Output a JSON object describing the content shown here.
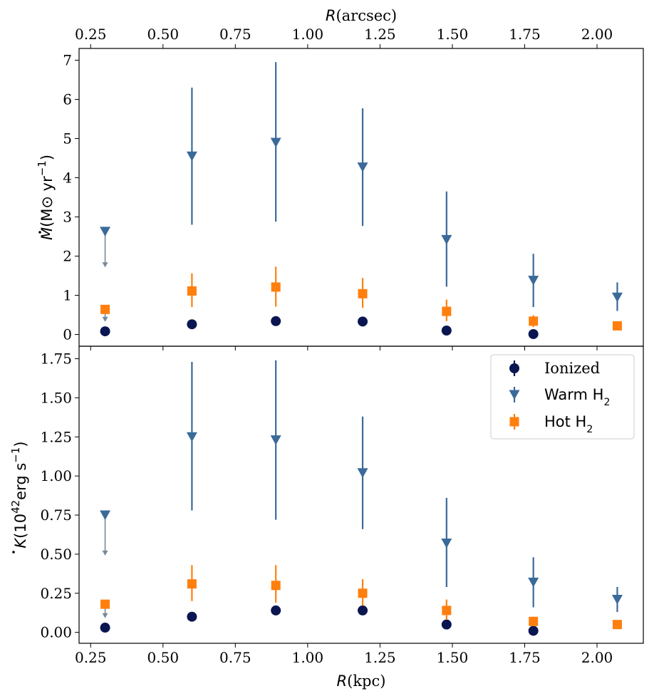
{
  "chart_data": {
    "type": "scatter",
    "top_xaxis": {
      "label_symbol": "R",
      "label_unit": "(arcsec)",
      "ticks": [
        "0.25",
        "0.50",
        "0.75",
        "1.00",
        "1.25",
        "1.50",
        "1.75",
        "2.00"
      ],
      "tick_values": [
        0.25,
        0.5,
        0.75,
        1.0,
        1.25,
        1.5,
        1.75,
        2.0
      ]
    },
    "xaxis": {
      "label_symbol": "R",
      "label_unit": "(kpc)",
      "ticks": [
        "0.25",
        "0.50",
        "0.75",
        "1.00",
        "1.25",
        "1.50",
        "1.75",
        "2.00"
      ],
      "tick_values": [
        0.25,
        0.5,
        0.75,
        1.0,
        1.25,
        1.5,
        1.75,
        2.0
      ],
      "xlim": [
        0.21,
        2.16
      ]
    },
    "legend": {
      "placement": "top-right",
      "entries": [
        {
          "key": "ionized",
          "label": "Ionized",
          "marker": "circle",
          "color": "#0a1650"
        },
        {
          "key": "warm",
          "label_prefix": "Warm H",
          "label_sub": "2",
          "marker": "triangle-down",
          "color": "#3a6a9a"
        },
        {
          "key": "hot",
          "label_prefix": "Hot H",
          "label_sub": "2",
          "marker": "square",
          "color": "#ff7f0e"
        }
      ]
    },
    "upper_limit_color": "#778899",
    "panels": [
      {
        "id": "mdot",
        "ylabel_main": "M",
        "ylabel_unit": "(M⊙ yr",
        "ylabel_exp": "−1",
        "ylabel_close": ")",
        "ylim": [
          -0.3,
          7.3
        ],
        "yticks": [
          0,
          1,
          2,
          3,
          4,
          5,
          6,
          7
        ],
        "ytick_labels": [
          "0",
          "1",
          "2",
          "3",
          "4",
          "5",
          "6",
          "7"
        ],
        "series": [
          {
            "name": "Ionized",
            "x": [
              0.3,
              0.6,
              0.89,
              1.19,
              1.48,
              1.78
            ],
            "y": [
              0.08,
              0.26,
              0.34,
              0.33,
              0.1,
              0.01
            ],
            "err_lo": [
              0.02,
              0.02,
              0.03,
              0.03,
              0.02,
              0.02
            ],
            "err_hi": [
              0.02,
              0.02,
              0.03,
              0.03,
              0.02,
              0.02
            ]
          },
          {
            "name": "Warm H2",
            "x": [
              0.6,
              0.89,
              1.19,
              1.48,
              1.78,
              2.07
            ],
            "y": [
              4.55,
              4.9,
              4.27,
              2.42,
              1.38,
              0.95
            ],
            "err_lo": [
              1.75,
              2.02,
              1.5,
              1.2,
              0.68,
              0.35
            ],
            "err_hi": [
              1.75,
              2.05,
              1.5,
              1.23,
              0.68,
              0.38
            ]
          },
          {
            "name": "Hot H2",
            "x": [
              0.6,
              0.89,
              1.19,
              1.48,
              1.78,
              2.07
            ],
            "y": [
              1.11,
              1.21,
              1.04,
              0.59,
              0.34,
              0.22
            ],
            "err_lo": [
              0.41,
              0.5,
              0.36,
              0.25,
              0.15,
              0.05
            ],
            "err_hi": [
              0.45,
              0.52,
              0.4,
              0.3,
              0.15,
              0.05
            ]
          }
        ],
        "upper_limits": [
          {
            "name": "Warm H2",
            "x": 0.3,
            "y": 2.63,
            "to": 1.75
          },
          {
            "name": "Hot H2",
            "x": 0.3,
            "y": 0.64,
            "to": 0.36
          }
        ]
      },
      {
        "id": "kdot",
        "ylabel_main": "K",
        "ylabel_unit": "(10",
        "ylabel_pow": "42",
        "ylabel_unit2": "erg s",
        "ylabel_exp": "−1",
        "ylabel_close": ")",
        "ylim": [
          -0.07,
          1.83
        ],
        "yticks": [
          0,
          0.25,
          0.5,
          0.75,
          1.0,
          1.25,
          1.5,
          1.75
        ],
        "ytick_labels": [
          "0.00",
          "0.25",
          "0.50",
          "0.75",
          "1.00",
          "1.25",
          "1.50",
          "1.75"
        ],
        "series": [
          {
            "name": "Ionized",
            "x": [
              0.3,
              0.6,
              0.89,
              1.19,
              1.48,
              1.78
            ],
            "y": [
              0.03,
              0.1,
              0.14,
              0.14,
              0.05,
              0.01
            ],
            "err_lo": [
              0.01,
              0.01,
              0.02,
              0.02,
              0.01,
              0.01
            ],
            "err_hi": [
              0.01,
              0.01,
              0.02,
              0.02,
              0.01,
              0.01
            ]
          },
          {
            "name": "Warm H2",
            "x": [
              0.6,
              0.89,
              1.19,
              1.48,
              1.78,
              2.07
            ],
            "y": [
              1.25,
              1.23,
              1.02,
              0.57,
              0.32,
              0.21
            ],
            "err_lo": [
              0.47,
              0.51,
              0.36,
              0.28,
              0.16,
              0.08
            ],
            "err_hi": [
              0.48,
              0.51,
              0.36,
              0.29,
              0.16,
              0.08
            ]
          },
          {
            "name": "Hot H2",
            "x": [
              0.6,
              0.89,
              1.19,
              1.48,
              1.78,
              2.07
            ],
            "y": [
              0.31,
              0.3,
              0.25,
              0.14,
              0.07,
              0.05
            ],
            "err_lo": [
              0.11,
              0.11,
              0.08,
              0.06,
              0.03,
              0.01
            ],
            "err_hi": [
              0.12,
              0.13,
              0.09,
              0.07,
              0.03,
              0.01
            ]
          }
        ],
        "upper_limits": [
          {
            "name": "Warm H2",
            "x": 0.3,
            "y": 0.75,
            "to": 0.5
          },
          {
            "name": "Hot H2",
            "x": 0.3,
            "y": 0.18,
            "to": 0.1
          }
        ]
      }
    ]
  }
}
